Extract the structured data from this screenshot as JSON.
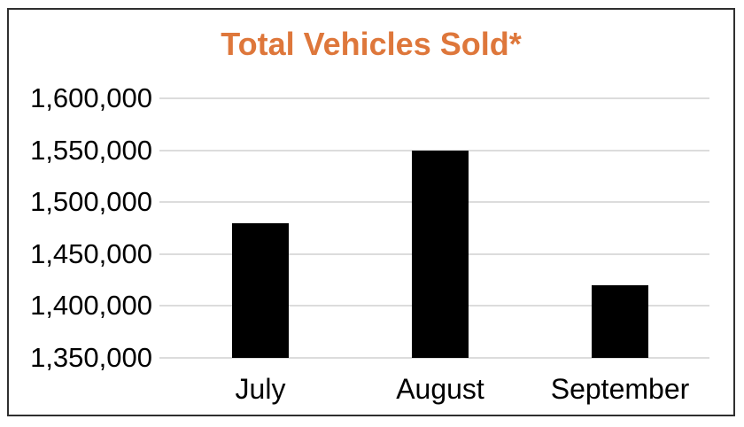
{
  "chart_data": {
    "type": "bar",
    "title": "Total Vehicles Sold*",
    "categories": [
      "July",
      "August",
      "September"
    ],
    "values": [
      1480000,
      1550000,
      1420000
    ],
    "series": [
      {
        "name": "Total Vehicles Sold",
        "values": [
          1480000,
          1550000,
          1420000
        ]
      }
    ],
    "xlabel": "",
    "ylabel": "",
    "ylim": [
      1350000,
      1600000
    ],
    "ytick_step": 50000,
    "yticks": [
      {
        "value": 1600000,
        "label": "1,600,000"
      },
      {
        "value": 1550000,
        "label": "1,550,000"
      },
      {
        "value": 1500000,
        "label": "1,500,000"
      },
      {
        "value": 1450000,
        "label": "1,450,000"
      },
      {
        "value": 1400000,
        "label": "1,400,000"
      },
      {
        "value": 1350000,
        "label": "1,350,000"
      }
    ],
    "grid": true,
    "legend": false,
    "colors": {
      "title": "#DE773B",
      "bar": "#000000",
      "gridline": "#DCDCDC",
      "axis_text": "#000000",
      "frame_border": "#2F2F2F",
      "background": "#FFFFFF"
    }
  }
}
